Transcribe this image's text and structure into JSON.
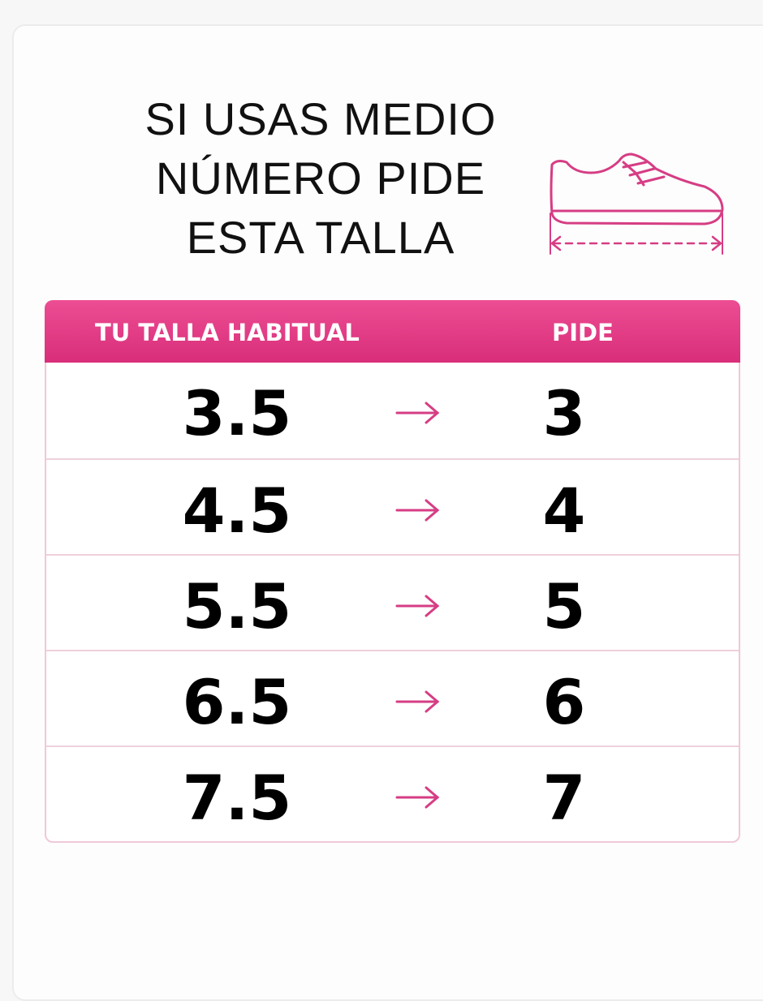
{
  "title": [
    "SI USAS MEDIO",
    "NÚMERO PIDE",
    "ESTA TALLA"
  ],
  "table": {
    "header": [
      "TU TALLA HABITUAL",
      "PIDE"
    ],
    "rows": [
      [
        "3.5",
        "3"
      ],
      [
        "4.5",
        "4"
      ],
      [
        "5.5",
        "5"
      ],
      [
        "6.5",
        "6"
      ],
      [
        "7.5",
        "7"
      ]
    ]
  }
}
